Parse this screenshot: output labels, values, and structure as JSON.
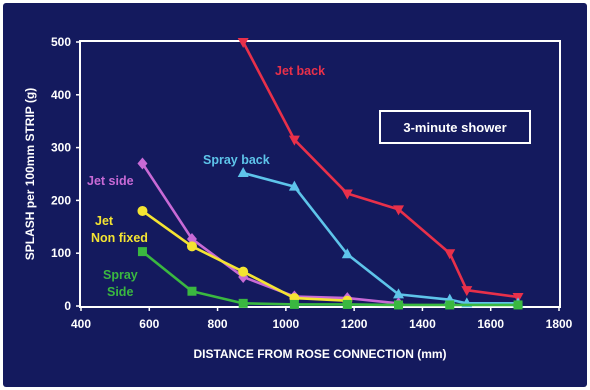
{
  "chart_data": {
    "type": "line",
    "title": "",
    "annotation_box": "3-minute shower",
    "xlabel": "DISTANCE FROM ROSE CONNECTION (mm)",
    "ylabel": "SPLASH per 100mm STRIP (g)",
    "xlim": [
      400,
      1800
    ],
    "ylim": [
      0,
      500
    ],
    "xticks": [
      400,
      600,
      800,
      1000,
      1200,
      1400,
      1600,
      1800
    ],
    "yticks": [
      0,
      100,
      200,
      300,
      400,
      500
    ],
    "grid": false,
    "series": [
      {
        "name": "Jet back",
        "label_lines": [
          "Jet back"
        ],
        "color": "#e8304a",
        "marker": "triangle-down",
        "x": [
          875,
          1025,
          1180,
          1330,
          1480,
          1530,
          1680
        ],
        "y": [
          500,
          315,
          213,
          183,
          100,
          30,
          17
        ]
      },
      {
        "name": "Spray back",
        "label_lines": [
          "Spray back"
        ],
        "color": "#5ec4ea",
        "marker": "triangle-up",
        "x": [
          875,
          1025,
          1180,
          1330,
          1480,
          1530,
          1680
        ],
        "y": [
          252,
          226,
          98,
          22,
          12,
          5,
          5
        ]
      },
      {
        "name": "Jet side",
        "label_lines": [
          "Jet side"
        ],
        "color": "#c86ad6",
        "marker": "diamond",
        "x": [
          580,
          725,
          875,
          1025,
          1180,
          1330
        ],
        "y": [
          270,
          127,
          55,
          18,
          15,
          5
        ]
      },
      {
        "name": "Jet Non fixed",
        "label_lines": [
          "Jet",
          "Non fixed"
        ],
        "color": "#f4e432",
        "marker": "circle",
        "x": [
          580,
          725,
          875,
          1025,
          1180
        ],
        "y": [
          180,
          113,
          65,
          15,
          10
        ]
      },
      {
        "name": "Spray Side",
        "label_lines": [
          "Spray",
          "Side"
        ],
        "color": "#3ab840",
        "marker": "square",
        "x": [
          580,
          725,
          875,
          1025,
          1180,
          1330,
          1480,
          1680
        ],
        "y": [
          103,
          28,
          5,
          3,
          3,
          2,
          2,
          2
        ]
      }
    ]
  }
}
